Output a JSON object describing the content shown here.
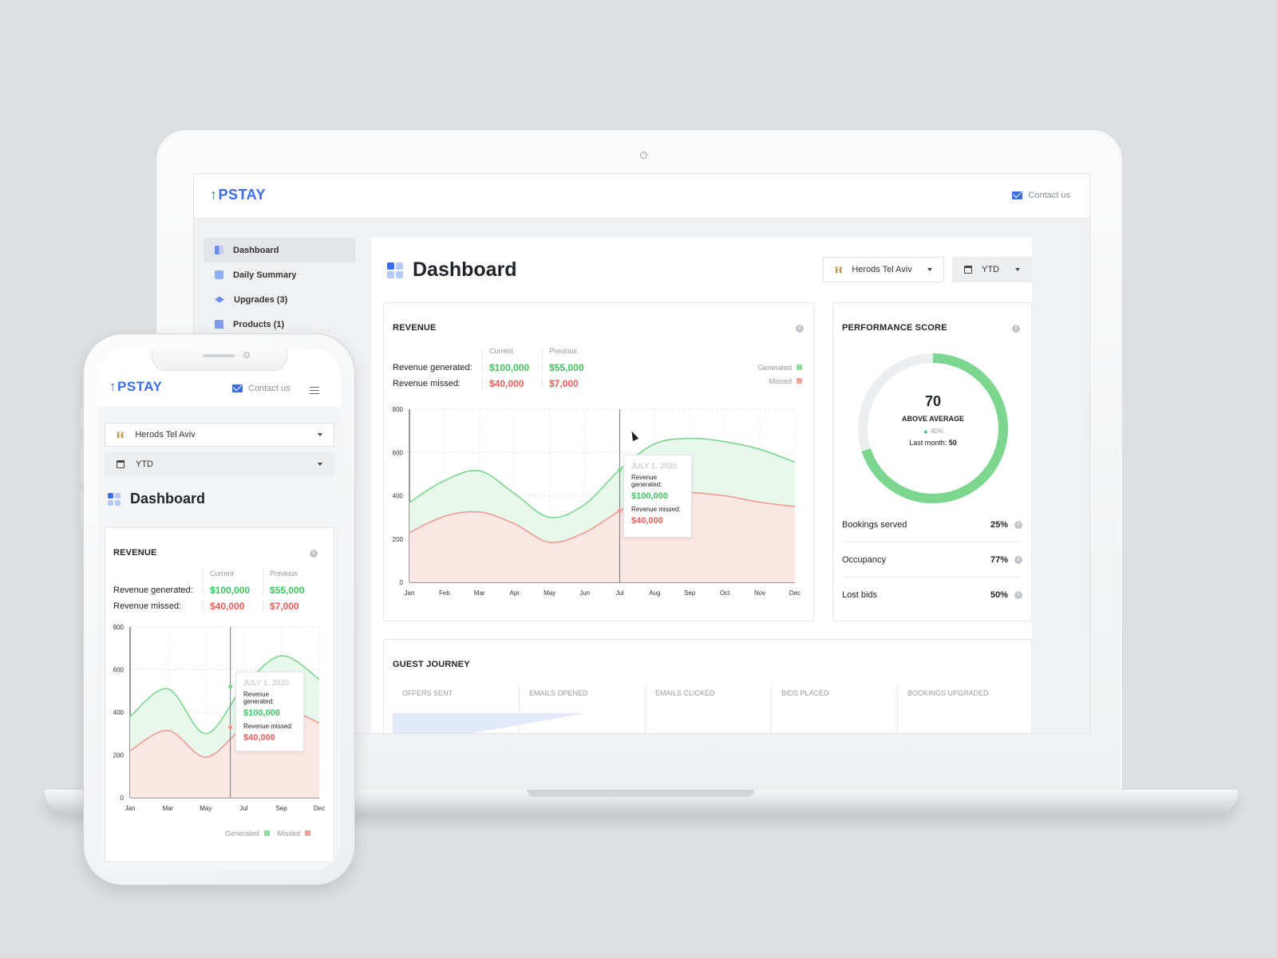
{
  "brand": {
    "logo": "PSTAY",
    "logo_arrow": "↑"
  },
  "header": {
    "contact": "Contact us"
  },
  "sidebar": {
    "items": [
      {
        "label": "Dashboard",
        "icon": "dashboard-icon",
        "active": true
      },
      {
        "label": "Daily Summary",
        "icon": "inbox-icon"
      },
      {
        "label": "Upgrades (3)",
        "icon": "layers-icon"
      },
      {
        "label": "Products (1)",
        "icon": "bag-icon"
      }
    ]
  },
  "page": {
    "title": "Dashboard"
  },
  "filters": {
    "hotel_mark": "H",
    "hotel": "Herods Tel Aviv",
    "period": "YTD"
  },
  "revenue": {
    "title": "REVENUE",
    "col_current": "Current",
    "col_previous": "Previous",
    "generated_label": "Revenue generated:",
    "missed_label": "Revenue missed:",
    "generated_current": "$100,000",
    "generated_previous": "$55,000",
    "missed_current": "$40,000",
    "missed_previous": "$7,000",
    "legend_generated": "Generated",
    "legend_missed": "Missed",
    "tooltip": {
      "date": "JULY 1, 2020",
      "generated_label": "Revenue generated:",
      "generated_value": "$100,000",
      "missed_label": "Revenue missed:",
      "missed_value": "$40,000"
    }
  },
  "chart_data": [
    {
      "type": "area",
      "categories": [
        "Jan",
        "Feb",
        "Mar",
        "Apr",
        "May",
        "Jun",
        "Jul",
        "Aug",
        "Sep",
        "Oct",
        "Nov",
        "Dec"
      ],
      "ylim": [
        0,
        800
      ],
      "yticks": [
        0,
        200,
        400,
        600,
        800
      ],
      "series": [
        {
          "name": "Generated",
          "color": "#7dd68f",
          "values": [
            370,
            470,
            515,
            410,
            300,
            360,
            520,
            640,
            665,
            650,
            615,
            555
          ]
        },
        {
          "name": "Missed",
          "color": "#f29b95",
          "values": [
            230,
            305,
            325,
            270,
            185,
            230,
            330,
            410,
            415,
            400,
            370,
            350
          ]
        }
      ],
      "highlight_index": 6
    },
    {
      "type": "area",
      "categories": [
        "Jan",
        "Mar",
        "May",
        "Jul",
        "Sep",
        "Dec"
      ],
      "ylim": [
        0,
        800
      ],
      "yticks": [
        0,
        200,
        400,
        600,
        800
      ],
      "series": [
        {
          "name": "Generated",
          "color": "#7dd68f",
          "values": [
            380,
            510,
            300,
            520,
            665,
            555
          ]
        },
        {
          "name": "Missed",
          "color": "#f29b95",
          "values": [
            220,
            315,
            190,
            330,
            415,
            350
          ]
        }
      ]
    }
  ],
  "performance": {
    "title": "PERFORMANCE SCORE",
    "score": "70",
    "score_fraction": 0.7,
    "status": "ABOVE AVERAGE",
    "change": "40%",
    "last_month_label": "Last month:",
    "last_month_value": "50",
    "metrics": [
      {
        "label": "Bookings served",
        "value": "25%"
      },
      {
        "label": "Occupancy",
        "value": "77%"
      },
      {
        "label": "Lost bids",
        "value": "50%"
      }
    ]
  },
  "journey": {
    "title": "GUEST JOURNEY",
    "columns": [
      "OFFERS SENT",
      "EMAILS OPENED",
      "EMAILS CLICKED",
      "BIDS PLACED",
      "BOOKINGS UPGRADED"
    ]
  },
  "colors": {
    "accent": "#3a6ee8",
    "green": "#3fc45f",
    "red": "#ee5e58"
  }
}
